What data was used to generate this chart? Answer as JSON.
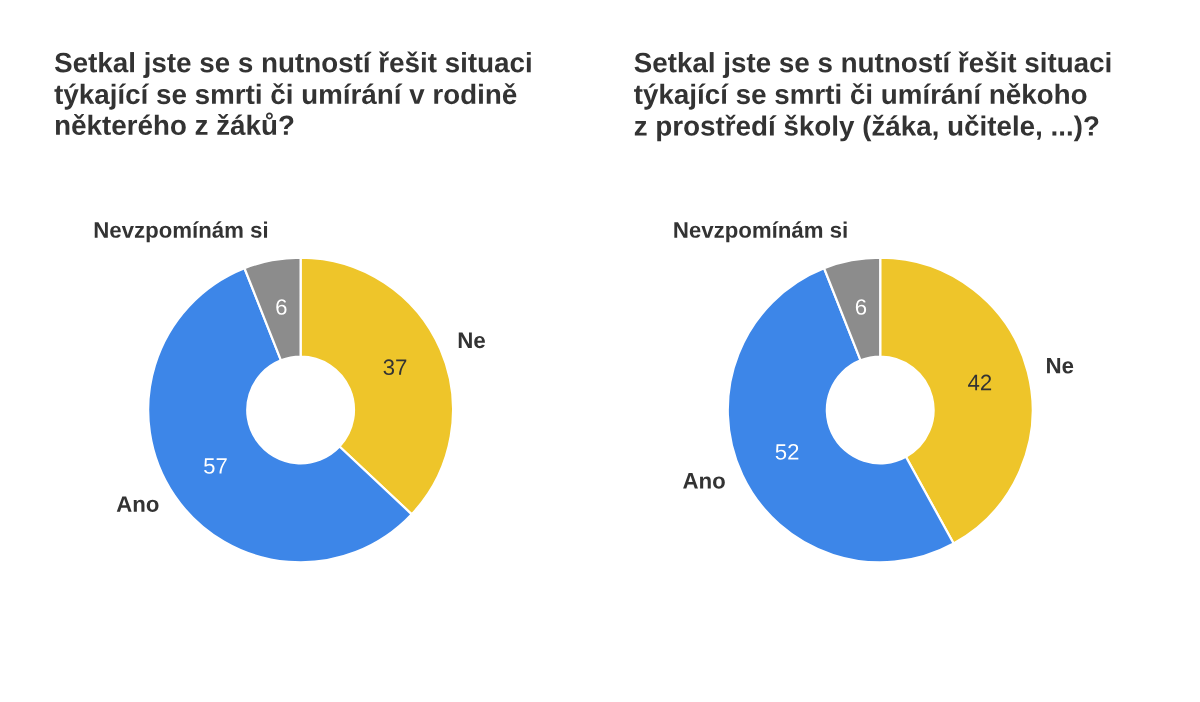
{
  "chart_data": [
    {
      "type": "donut",
      "title": "Setkal jste se s nutností řešit situaci\ntýkající se smrti či umírání v rodině\nněkterého z žáků?",
      "categories": [
        "Ne",
        "Ano",
        "Nevzpomínám si"
      ],
      "values": [
        37,
        57,
        6
      ],
      "colors": [
        "#eec52a",
        "#3d86e8",
        "#8c8c8c"
      ],
      "data_labels": true,
      "legend": false
    },
    {
      "type": "donut",
      "title": "Setkal jste se s nutností řešit situaci\ntýkající se smrti či umírání někoho\nz prostředí školy (žáka, učitele, ...)?",
      "categories": [
        "Ne",
        "Ano",
        "Nevzpomínám si"
      ],
      "values": [
        42,
        52,
        6
      ],
      "colors": [
        "#eec52a",
        "#3d86e8",
        "#8c8c8c"
      ],
      "data_labels": true,
      "legend": false
    }
  ]
}
